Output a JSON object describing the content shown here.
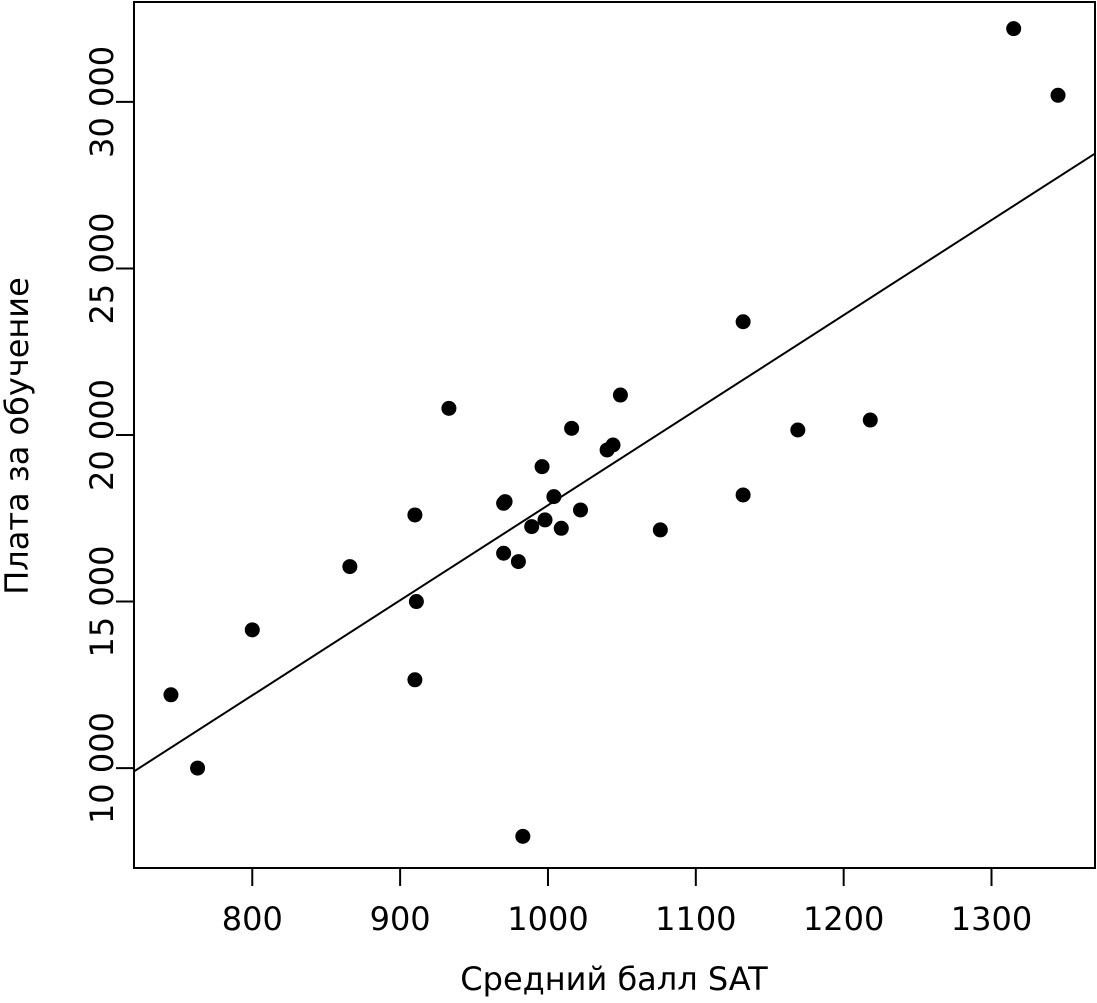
{
  "chart_data": {
    "type": "scatter",
    "title": "",
    "xlabel": "Средний балл SAT",
    "ylabel": "Плата за обучение",
    "xlim": [
      720,
      1370
    ],
    "ylim": [
      7000,
      33000
    ],
    "x_ticks": [
      800,
      900,
      1000,
      1100,
      1200,
      1300
    ],
    "x_tick_labels": [
      "800",
      "900",
      "1000",
      "1100",
      "1200",
      "1300"
    ],
    "y_ticks": [
      10000,
      15000,
      20000,
      25000,
      30000
    ],
    "y_tick_labels": [
      "10 000",
      "15 000",
      "20 000",
      "25 000",
      "30 000"
    ],
    "grid": false,
    "legend": "none",
    "points": [
      {
        "x": 745,
        "y": 12200
      },
      {
        "x": 763,
        "y": 10000
      },
      {
        "x": 800,
        "y": 14150
      },
      {
        "x": 866,
        "y": 16050
      },
      {
        "x": 910,
        "y": 12650
      },
      {
        "x": 910,
        "y": 17600
      },
      {
        "x": 911,
        "y": 15000
      },
      {
        "x": 933,
        "y": 20800
      },
      {
        "x": 970,
        "y": 16450
      },
      {
        "x": 970,
        "y": 17950
      },
      {
        "x": 971,
        "y": 18000
      },
      {
        "x": 980,
        "y": 16200
      },
      {
        "x": 983,
        "y": 7950
      },
      {
        "x": 989,
        "y": 17250
      },
      {
        "x": 996,
        "y": 19050
      },
      {
        "x": 998,
        "y": 17450
      },
      {
        "x": 1004,
        "y": 18150
      },
      {
        "x": 1009,
        "y": 17200
      },
      {
        "x": 1016,
        "y": 20200
      },
      {
        "x": 1022,
        "y": 17750
      },
      {
        "x": 1040,
        "y": 19550
      },
      {
        "x": 1044,
        "y": 19700
      },
      {
        "x": 1049,
        "y": 21200
      },
      {
        "x": 1076,
        "y": 17150
      },
      {
        "x": 1132,
        "y": 23400
      },
      {
        "x": 1132,
        "y": 18200
      },
      {
        "x": 1169,
        "y": 20150
      },
      {
        "x": 1218,
        "y": 20450
      },
      {
        "x": 1315,
        "y": 32200
      },
      {
        "x": 1345,
        "y": 30200
      }
    ],
    "trendline": {
      "x": [
        720,
        1370
      ],
      "y": [
        9900,
        28450
      ]
    }
  }
}
